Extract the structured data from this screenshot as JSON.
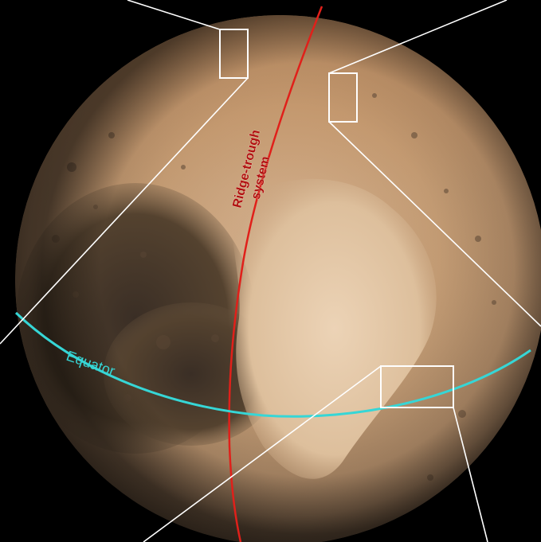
{
  "image": {
    "subject": "pluto-globe",
    "background_color": "#000000"
  },
  "annotations": {
    "ridge_label_line1": "Ridge-trough",
    "ridge_label_line2": "system",
    "ridge_color": "#e0201a",
    "ridge_label_color": "#b01010",
    "equator_label": "Equator",
    "equator_color": "#36d6d6",
    "callout_color": "#ffffff"
  }
}
